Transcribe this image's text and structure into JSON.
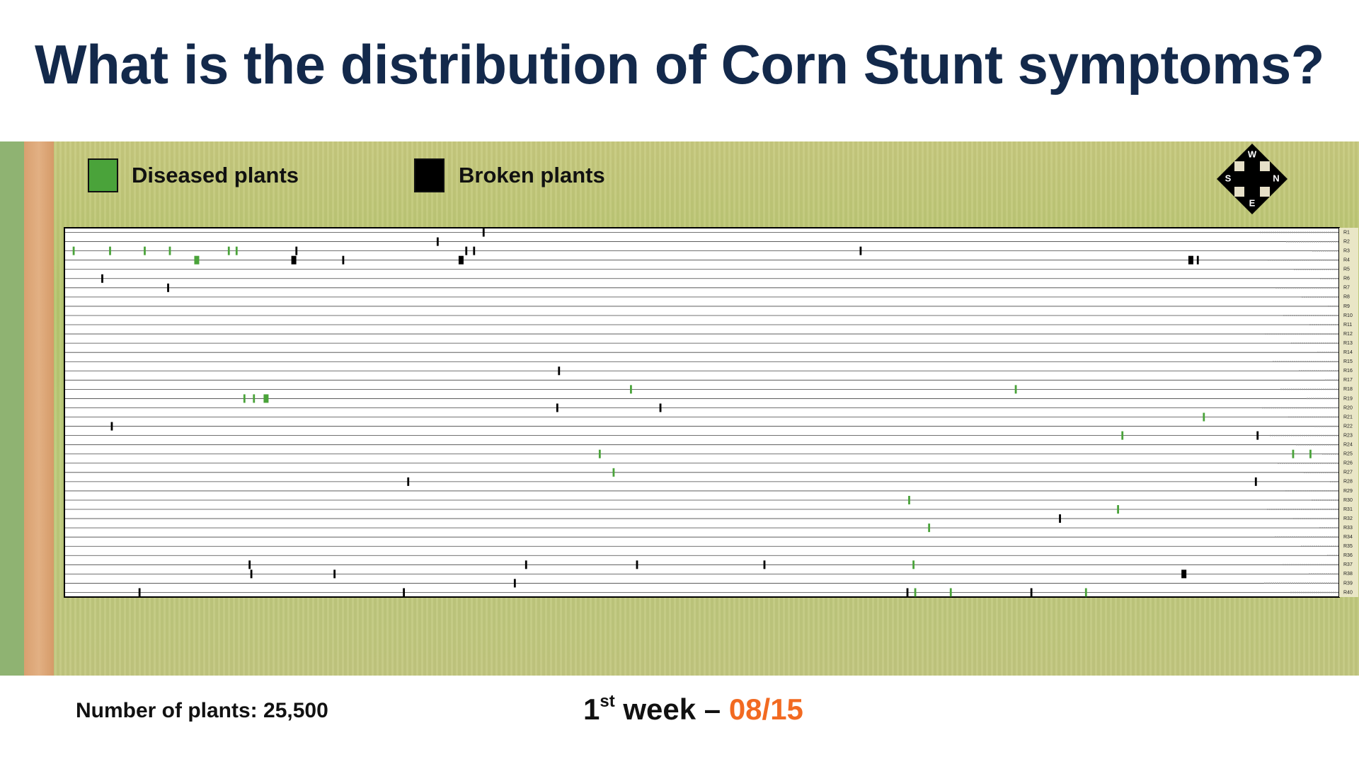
{
  "title": "What is the distribution of Corn Stunt symptoms?",
  "legend": {
    "diseased": "Diseased plants",
    "broken": "Broken plants"
  },
  "compass": {
    "west": "W",
    "north": "N",
    "east": "E",
    "south": "S"
  },
  "rows": [
    "R1",
    "R2",
    "R3",
    "R4",
    "R5",
    "R6",
    "R7",
    "R8",
    "R9",
    "R10",
    "R11",
    "R12",
    "R13",
    "R14",
    "R15",
    "R16",
    "R17",
    "R18",
    "R19",
    "R20",
    "R21",
    "R22",
    "R23",
    "R24",
    "R25",
    "R26",
    "R27",
    "R28",
    "R29",
    "R30",
    "R31",
    "R32",
    "R33",
    "R34",
    "R35",
    "R36",
    "R37",
    "R38",
    "R39",
    "R40"
  ],
  "footer": {
    "plants": "Number of plants: 25,500",
    "week_number": "1",
    "week_suffix": "st",
    "week_text": " week – ",
    "date": "08/15"
  }
}
